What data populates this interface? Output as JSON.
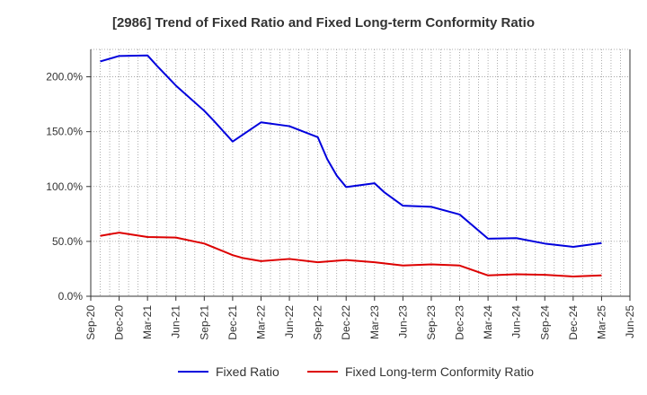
{
  "chart_data": {
    "type": "line",
    "title": "[2986]  Trend of Fixed Ratio and Fixed Long-term Conformity Ratio",
    "xlabel": "",
    "ylabel": "",
    "x_ticks": [
      "Sep-20",
      "Dec-20",
      "Mar-21",
      "Jun-21",
      "Sep-21",
      "Dec-21",
      "Mar-22",
      "Jun-22",
      "Sep-22",
      "Dec-22",
      "Mar-23",
      "Jun-23",
      "Sep-23",
      "Dec-23",
      "Mar-24",
      "Jun-24",
      "Sep-24",
      "Dec-24",
      "Mar-25",
      "Jun-25"
    ],
    "y_ticks": [
      "0.0%",
      "50.0%",
      "100.0%",
      "150.0%",
      "200.0%"
    ],
    "ylim": [
      0,
      225
    ],
    "grid": true,
    "legend_position": "bottom",
    "x": [
      "Dec-20_minus",
      "Dec-20",
      "Mar-21",
      "Apr-21",
      "Jun-21",
      "Sep-21",
      "Oct-21",
      "Dec-21",
      "Mar-22",
      "Jun-22",
      "Sep-22",
      "Oct-22",
      "Nov-22",
      "Dec-22",
      "Mar-23",
      "Apr-23",
      "Jun-23",
      "Sep-23",
      "Dec-23",
      "Mar-24",
      "Jun-24",
      "Sep-24",
      "Dec-24",
      "Mar-25"
    ],
    "series": [
      {
        "name": "Fixed Ratio",
        "color": "#0000dd",
        "points": [
          [
            "Oct-20",
            214
          ],
          [
            "Dec-20",
            219
          ],
          [
            "Mar-21",
            219.5
          ],
          [
            "Apr-21",
            210
          ],
          [
            "Jun-21",
            192
          ],
          [
            "Sep-21",
            169
          ],
          [
            "Oct-21",
            160
          ],
          [
            "Dec-21",
            141
          ],
          [
            "Mar-22",
            158.5
          ],
          [
            "Jun-22",
            155
          ],
          [
            "Sep-22",
            145
          ],
          [
            "Oct-22",
            125
          ],
          [
            "Nov-22",
            110
          ],
          [
            "Dec-22",
            99.5
          ],
          [
            "Mar-23",
            103
          ],
          [
            "Apr-23",
            95
          ],
          [
            "Jun-23",
            82.5
          ],
          [
            "Sep-23",
            81.5
          ],
          [
            "Dec-23",
            74.5
          ],
          [
            "Mar-24",
            52.5
          ],
          [
            "Jun-24",
            53
          ],
          [
            "Sep-24",
            48
          ],
          [
            "Dec-24",
            45
          ],
          [
            "Mar-25",
            48.5
          ]
        ]
      },
      {
        "name": "Fixed Long-term Conformity Ratio",
        "color": "#dd0000",
        "points": [
          [
            "Oct-20",
            55
          ],
          [
            "Dec-20",
            58
          ],
          [
            "Mar-21",
            54
          ],
          [
            "Jun-21",
            53.5
          ],
          [
            "Sep-21",
            48
          ],
          [
            "Dec-21",
            37.5
          ],
          [
            "Jan-22",
            35
          ],
          [
            "Mar-22",
            32
          ],
          [
            "Jun-22",
            34
          ],
          [
            "Sep-22",
            31
          ],
          [
            "Dec-22",
            33
          ],
          [
            "Mar-23",
            31
          ],
          [
            "Jun-23",
            28
          ],
          [
            "Sep-23",
            29
          ],
          [
            "Dec-23",
            28
          ],
          [
            "Mar-24",
            19
          ],
          [
            "Jun-24",
            20
          ],
          [
            "Sep-24",
            19.5
          ],
          [
            "Dec-24",
            18
          ],
          [
            "Mar-25",
            19
          ]
        ]
      }
    ]
  }
}
